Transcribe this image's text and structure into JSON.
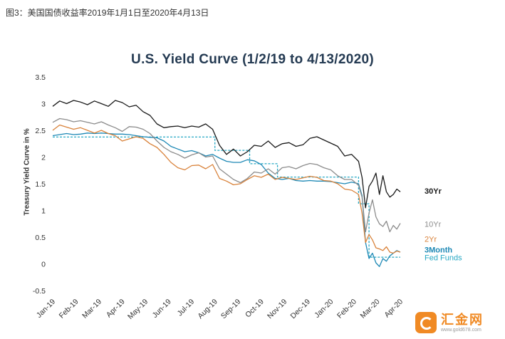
{
  "caption": "图3：美国国债收益率2019年1月1日至2020年4月13日",
  "watermark": {
    "name": "汇金网",
    "url": "www.gold678.com"
  },
  "chart_data": {
    "type": "line",
    "title": "U.S. Yield Curve (1/2/19 to 4/13/2020)",
    "xlabel": "",
    "ylabel": "Treasury Yield Curve in %",
    "ylim": [
      -0.5,
      3.5
    ],
    "yticks": [
      -0.5,
      0,
      0.5,
      1,
      1.5,
      2,
      2.5,
      3,
      3.5
    ],
    "ytick_labels": [
      "-0.5",
      "0",
      "0.5",
      "1",
      "1.5",
      "2",
      "2.5",
      "3",
      "3.5"
    ],
    "xlim": [
      0,
      15.4
    ],
    "xtick_labels": [
      "Jan-19",
      "Feb-19",
      "Mar-19",
      "Apr-19",
      "May-19",
      "Jun-19",
      "Jul-19",
      "Aug-19",
      "Sep-19",
      "Oct-19",
      "Nov-19",
      "Dec-19",
      "Jan-20",
      "Feb-20",
      "Mar-20",
      "Apr-20"
    ],
    "grid": false,
    "legend": "inline labels at right end of each series",
    "series": [
      {
        "name": "30Yr",
        "color": "#1a1a1a",
        "x": [
          0,
          0.3,
          0.6,
          0.9,
          1.2,
          1.5,
          1.8,
          2.1,
          2.4,
          2.7,
          3.0,
          3.3,
          3.6,
          3.9,
          4.2,
          4.5,
          4.8,
          5.1,
          5.4,
          5.7,
          6.0,
          6.3,
          6.6,
          6.9,
          7.2,
          7.5,
          7.8,
          8.1,
          8.4,
          8.7,
          9.0,
          9.3,
          9.6,
          9.9,
          10.2,
          10.5,
          10.8,
          11.1,
          11.4,
          11.7,
          12.0,
          12.3,
          12.6,
          12.9,
          13.2,
          13.35,
          13.5,
          13.65,
          13.8,
          13.95,
          14.1,
          14.25,
          14.4,
          14.55,
          14.7,
          14.85,
          15.0
        ],
        "values": [
          2.95,
          3.05,
          3.0,
          3.06,
          3.03,
          2.98,
          3.05,
          3.0,
          2.95,
          3.06,
          3.02,
          2.94,
          2.97,
          2.85,
          2.78,
          2.62,
          2.55,
          2.57,
          2.58,
          2.55,
          2.58,
          2.56,
          2.62,
          2.52,
          2.22,
          2.05,
          2.15,
          2.02,
          2.1,
          2.22,
          2.2,
          2.3,
          2.18,
          2.25,
          2.27,
          2.2,
          2.23,
          2.35,
          2.38,
          2.32,
          2.26,
          2.2,
          2.02,
          2.05,
          1.92,
          1.62,
          1.05,
          1.45,
          1.55,
          1.7,
          1.3,
          1.65,
          1.35,
          1.25,
          1.3,
          1.4,
          1.35
        ]
      },
      {
        "name": "10Yr",
        "color": "#8c8c8c",
        "x": [
          0,
          0.3,
          0.6,
          0.9,
          1.2,
          1.5,
          1.8,
          2.1,
          2.4,
          2.7,
          3.0,
          3.3,
          3.6,
          3.9,
          4.2,
          4.5,
          4.8,
          5.1,
          5.4,
          5.7,
          6.0,
          6.3,
          6.6,
          6.9,
          7.2,
          7.5,
          7.8,
          8.1,
          8.4,
          8.7,
          9.0,
          9.3,
          9.6,
          9.9,
          10.2,
          10.5,
          10.8,
          11.1,
          11.4,
          11.7,
          12.0,
          12.3,
          12.6,
          12.9,
          13.2,
          13.35,
          13.5,
          13.65,
          13.8,
          13.95,
          14.1,
          14.25,
          14.4,
          14.55,
          14.7,
          14.85,
          15.0
        ],
        "values": [
          2.65,
          2.72,
          2.7,
          2.66,
          2.68,
          2.65,
          2.62,
          2.66,
          2.6,
          2.55,
          2.48,
          2.57,
          2.56,
          2.52,
          2.44,
          2.3,
          2.18,
          2.1,
          2.05,
          1.98,
          2.04,
          2.08,
          2.0,
          2.02,
          1.78,
          1.68,
          1.58,
          1.52,
          1.6,
          1.72,
          1.7,
          1.78,
          1.68,
          1.8,
          1.82,
          1.78,
          1.84,
          1.88,
          1.86,
          1.8,
          1.76,
          1.65,
          1.58,
          1.58,
          1.47,
          1.25,
          0.6,
          0.95,
          1.2,
          0.88,
          0.75,
          0.7,
          0.8,
          0.6,
          0.72,
          0.65,
          0.76
        ]
      },
      {
        "name": "2Yr",
        "color": "#d9823a",
        "x": [
          0,
          0.3,
          0.6,
          0.9,
          1.2,
          1.5,
          1.8,
          2.1,
          2.4,
          2.7,
          3.0,
          3.3,
          3.6,
          3.9,
          4.2,
          4.5,
          4.8,
          5.1,
          5.4,
          5.7,
          6.0,
          6.3,
          6.6,
          6.9,
          7.2,
          7.5,
          7.8,
          8.1,
          8.4,
          8.7,
          9.0,
          9.3,
          9.6,
          9.9,
          10.2,
          10.5,
          10.8,
          11.1,
          11.4,
          11.7,
          12.0,
          12.3,
          12.6,
          12.9,
          13.2,
          13.35,
          13.5,
          13.65,
          13.8,
          13.95,
          14.1,
          14.25,
          14.4,
          14.55,
          14.7,
          14.85,
          15.0
        ],
        "values": [
          2.5,
          2.6,
          2.56,
          2.52,
          2.55,
          2.5,
          2.45,
          2.5,
          2.44,
          2.4,
          2.3,
          2.34,
          2.38,
          2.35,
          2.25,
          2.18,
          2.05,
          1.9,
          1.8,
          1.76,
          1.84,
          1.85,
          1.78,
          1.86,
          1.6,
          1.55,
          1.48,
          1.5,
          1.58,
          1.65,
          1.62,
          1.68,
          1.58,
          1.62,
          1.6,
          1.58,
          1.61,
          1.64,
          1.62,
          1.56,
          1.55,
          1.5,
          1.4,
          1.38,
          1.3,
          0.95,
          0.4,
          0.55,
          0.45,
          0.3,
          0.28,
          0.25,
          0.32,
          0.22,
          0.2,
          0.24,
          0.22
        ]
      },
      {
        "name": "3Month",
        "color": "#1d88b5",
        "x": [
          0,
          0.3,
          0.6,
          0.9,
          1.2,
          1.5,
          1.8,
          2.1,
          2.4,
          2.7,
          3.0,
          3.3,
          3.6,
          3.9,
          4.2,
          4.5,
          4.8,
          5.1,
          5.4,
          5.7,
          6.0,
          6.3,
          6.6,
          6.9,
          7.2,
          7.5,
          7.8,
          8.1,
          8.4,
          8.7,
          9.0,
          9.3,
          9.6,
          9.9,
          10.2,
          10.5,
          10.8,
          11.1,
          11.4,
          11.7,
          12.0,
          12.3,
          12.6,
          12.9,
          13.2,
          13.35,
          13.5,
          13.65,
          13.8,
          13.95,
          14.1,
          14.25,
          14.4,
          14.55,
          14.7,
          14.85,
          15.0
        ],
        "values": [
          2.4,
          2.42,
          2.44,
          2.42,
          2.43,
          2.45,
          2.44,
          2.45,
          2.44,
          2.43,
          2.43,
          2.42,
          2.4,
          2.38,
          2.37,
          2.36,
          2.3,
          2.2,
          2.15,
          2.1,
          2.12,
          2.08,
          2.02,
          2.05,
          1.98,
          1.92,
          1.9,
          1.9,
          1.95,
          1.93,
          1.86,
          1.7,
          1.6,
          1.58,
          1.6,
          1.56,
          1.55,
          1.56,
          1.55,
          1.55,
          1.54,
          1.52,
          1.5,
          1.53,
          1.5,
          1.28,
          0.4,
          0.1,
          0.2,
          0.02,
          -0.05,
          0.1,
          0.05,
          0.15,
          0.2,
          0.25,
          0.22
        ]
      },
      {
        "name": "Fed Funds",
        "color": "#27a8c4",
        "dashed": true,
        "x": [
          0,
          7.0,
          7.0,
          8.5,
          8.5,
          9.7,
          9.7,
          13.2,
          13.2,
          13.65,
          13.65,
          15.0
        ],
        "values": [
          2.375,
          2.375,
          2.125,
          2.125,
          1.875,
          1.875,
          1.625,
          1.625,
          1.125,
          1.125,
          0.125,
          0.125
        ]
      }
    ]
  }
}
